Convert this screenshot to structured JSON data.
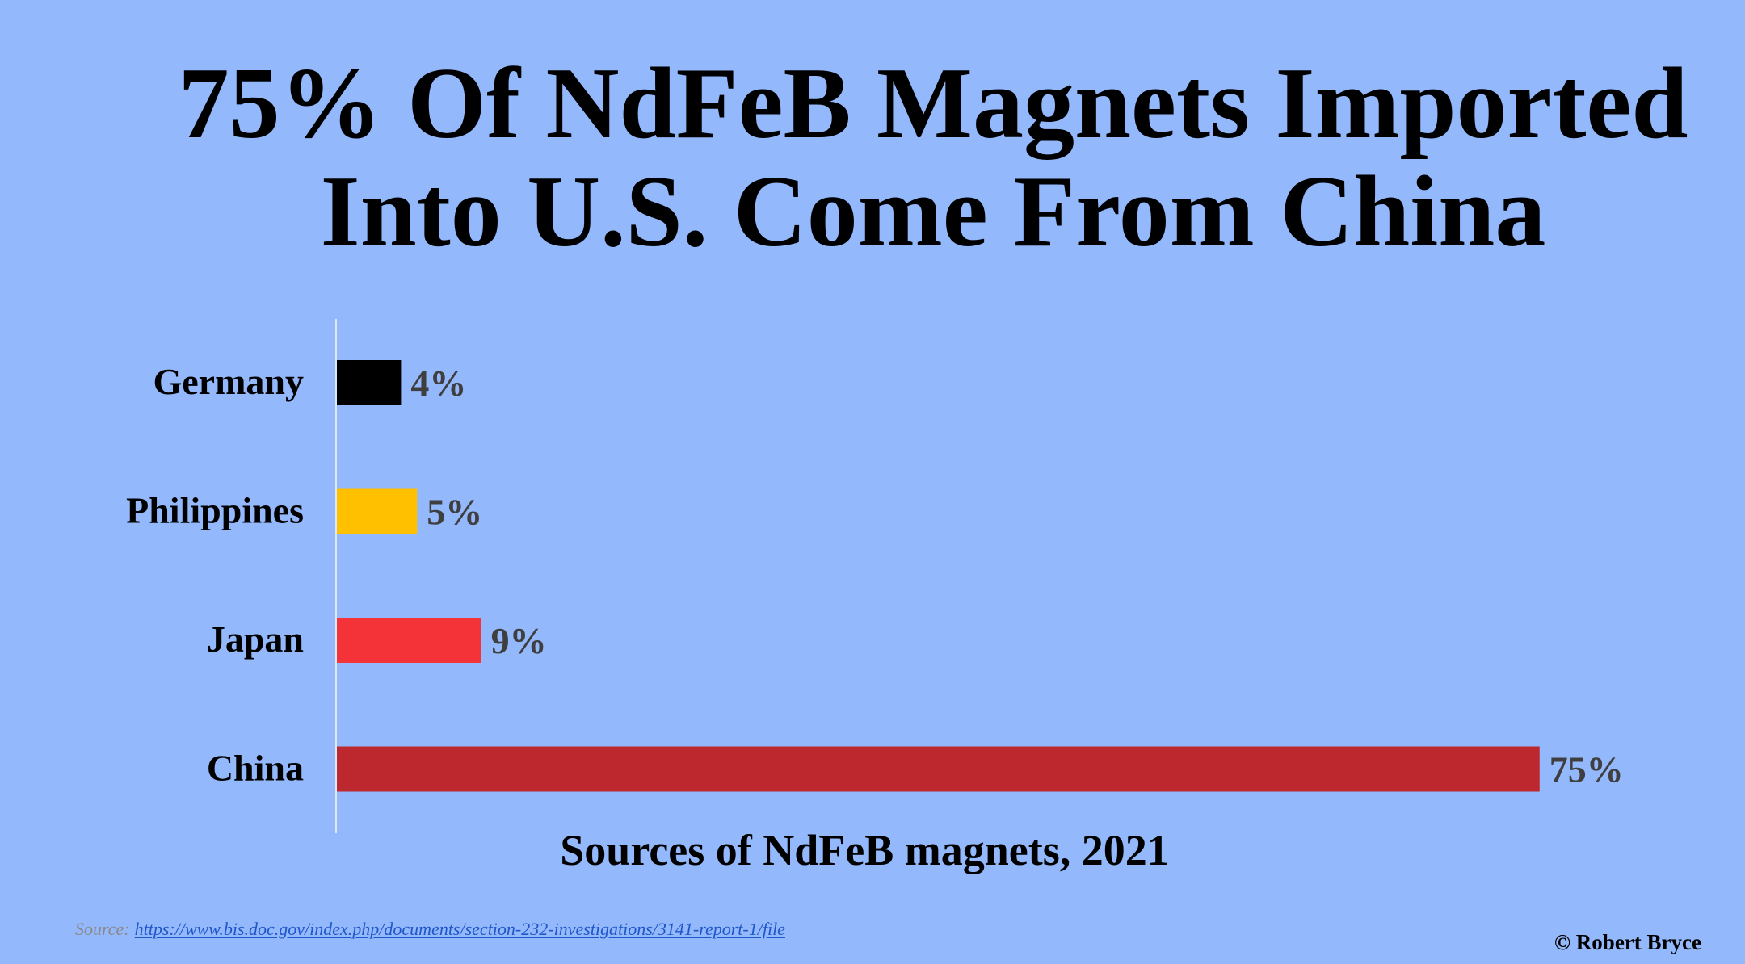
{
  "header": {
    "title_line1": "75% Of NdFeB Magnets Imported",
    "title_line2": "Into U.S. Come From China"
  },
  "chart_data": {
    "type": "bar",
    "orientation": "horizontal",
    "categories": [
      "Germany",
      "Philippines",
      "Japan",
      "China"
    ],
    "values": [
      4,
      5,
      9,
      75
    ],
    "value_labels": [
      "4%",
      "5%",
      "9%",
      "75%"
    ],
    "colors": [
      "#000000",
      "#ffc000",
      "#f43338",
      "#bd272e"
    ],
    "xlim": [
      0,
      75
    ],
    "grid": false,
    "title": "Sources of NdFeB magnets, 2021"
  },
  "footer": {
    "source_label": "Source:",
    "source_url": "https://www.bis.doc.gov/index.php/documents/section-232-investigations/3141-report-1/file",
    "copyright": "© Robert Bryce"
  }
}
